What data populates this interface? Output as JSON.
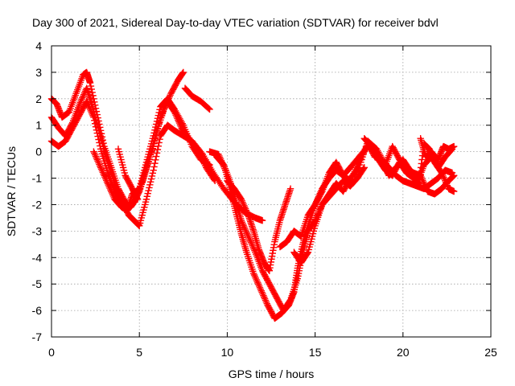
{
  "chart_data": {
    "type": "scatter",
    "title": "Day 300 of 2021, Sidereal Day-to-day VTEC variation (SDTVAR) for receiver bdvl",
    "xlabel": "GPS time / hours",
    "ylabel": "SDTVAR / TECUs",
    "xlim": [
      0,
      25
    ],
    "ylim": [
      -7,
      4
    ],
    "xticks": [
      "0",
      "5",
      "10",
      "15",
      "20",
      "25"
    ],
    "yticks": [
      "4",
      "3",
      "2",
      "1",
      "0",
      "-1",
      "-2",
      "-3",
      "-4",
      "-5",
      "-6",
      "-7"
    ],
    "grid": true,
    "marker": "+",
    "marker_color": "#ff0000",
    "series": [
      {
        "points": [
          [
            0.0,
            2.0
          ],
          [
            0.3,
            1.8
          ],
          [
            0.6,
            1.3
          ],
          [
            1.0,
            1.5
          ],
          [
            1.4,
            2.2
          ],
          [
            1.8,
            2.9
          ],
          [
            2.0,
            3.0
          ],
          [
            2.2,
            2.6
          ],
          [
            2.6,
            1.4
          ],
          [
            3.0,
            0.2
          ],
          [
            3.4,
            -0.6
          ],
          [
            3.8,
            -1.4
          ],
          [
            4.2,
            -1.9
          ],
          [
            4.5,
            -2.1
          ],
          [
            4.8,
            -1.8
          ],
          [
            5.2,
            -1.1
          ],
          [
            5.6,
            -0.2
          ],
          [
            6.0,
            0.8
          ],
          [
            6.4,
            1.6
          ],
          [
            6.8,
            2.2
          ],
          [
            7.2,
            2.7
          ],
          [
            7.5,
            3.0
          ]
        ]
      },
      {
        "points": [
          [
            0.0,
            1.3
          ],
          [
            0.4,
            0.9
          ],
          [
            0.8,
            0.6
          ],
          [
            1.2,
            1.1
          ],
          [
            1.6,
            1.8
          ],
          [
            2.0,
            2.4
          ],
          [
            2.3,
            1.8
          ],
          [
            2.7,
            0.8
          ],
          [
            3.1,
            -0.2
          ],
          [
            3.5,
            -1.0
          ],
          [
            3.9,
            -1.8
          ],
          [
            4.3,
            -2.2
          ],
          [
            4.6,
            -2.0
          ],
          [
            5.0,
            -1.5
          ],
          [
            5.4,
            -0.6
          ],
          [
            5.8,
            0.2
          ],
          [
            6.2,
            1.3
          ],
          [
            6.6,
            1.9
          ],
          [
            7.0,
            1.5
          ],
          [
            7.4,
            0.9
          ],
          [
            7.8,
            0.5
          ],
          [
            8.3,
            0.1
          ],
          [
            8.8,
            -0.6
          ],
          [
            9.3,
            -1.1
          ]
        ]
      },
      {
        "points": [
          [
            0.0,
            0.4
          ],
          [
            0.4,
            0.2
          ],
          [
            0.8,
            0.4
          ],
          [
            1.2,
            0.9
          ],
          [
            1.6,
            1.4
          ],
          [
            2.0,
            1.9
          ],
          [
            2.4,
            1.3
          ],
          [
            2.8,
            0.1
          ],
          [
            3.2,
            -0.8
          ],
          [
            3.6,
            -1.5
          ],
          [
            4.0,
            -1.9
          ],
          [
            4.4,
            -2.4
          ],
          [
            4.7,
            -2.6
          ],
          [
            5.0,
            -2.8
          ],
          [
            5.4,
            -1.8
          ],
          [
            5.8,
            -0.7
          ],
          [
            6.2,
            0.6
          ],
          [
            6.6,
            1.0
          ],
          [
            7.0,
            0.8
          ],
          [
            7.5,
            0.6
          ],
          [
            8.0,
            0.4
          ],
          [
            8.6,
            -0.1
          ],
          [
            9.2,
            -0.8
          ],
          [
            9.8,
            -1.4
          ],
          [
            10.4,
            -1.9
          ],
          [
            11.0,
            -2.3
          ],
          [
            11.6,
            -2.5
          ],
          [
            12.0,
            -2.6
          ]
        ]
      },
      {
        "points": [
          [
            2.4,
            0.0
          ],
          [
            2.8,
            -0.6
          ],
          [
            3.2,
            -1.2
          ],
          [
            3.6,
            -1.8
          ],
          [
            4.0,
            -2.1
          ],
          [
            4.3,
            -2.2
          ],
          [
            4.6,
            -1.6
          ],
          [
            5.0,
            -1.4
          ],
          [
            5.4,
            -0.4
          ],
          [
            5.8,
            0.6
          ],
          [
            6.2,
            1.7
          ],
          [
            6.6,
            2.0
          ],
          [
            7.0,
            1.6
          ],
          [
            7.5,
            1.0
          ],
          [
            8.0,
            0.2
          ],
          [
            8.5,
            -0.3
          ],
          [
            9.0,
            -0.5
          ]
        ]
      },
      {
        "points": [
          [
            3.8,
            0.1
          ],
          [
            4.2,
            -0.9
          ],
          [
            4.6,
            -1.4
          ],
          [
            4.9,
            -1.8
          ]
        ]
      },
      {
        "points": [
          [
            7.6,
            2.4
          ],
          [
            8.0,
            2.1
          ],
          [
            8.5,
            1.9
          ],
          [
            9.0,
            1.6
          ]
        ]
      },
      {
        "points": [
          [
            9.0,
            0.0
          ],
          [
            9.5,
            -0.1
          ],
          [
            9.9,
            -0.7
          ],
          [
            10.2,
            -1.5
          ],
          [
            10.5,
            -2.3
          ],
          [
            10.8,
            -3.1
          ],
          [
            11.1,
            -3.8
          ],
          [
            11.5,
            -4.6
          ],
          [
            11.9,
            -5.2
          ],
          [
            12.3,
            -5.8
          ],
          [
            12.7,
            -6.3
          ],
          [
            13.1,
            -6.1
          ],
          [
            13.5,
            -5.8
          ],
          [
            13.8,
            -5.3
          ],
          [
            14.0,
            -4.4
          ],
          [
            14.3,
            -3.5
          ],
          [
            14.6,
            -2.8
          ],
          [
            15.0,
            -2.0
          ],
          [
            15.4,
            -1.4
          ],
          [
            15.8,
            -1.0
          ],
          [
            16.2,
            -0.7
          ],
          [
            16.6,
            -0.9
          ],
          [
            17.0,
            -1.1
          ],
          [
            17.5,
            -0.4
          ],
          [
            18.0,
            0.3
          ],
          [
            18.4,
            -0.2
          ],
          [
            18.8,
            -0.3
          ],
          [
            19.2,
            -0.6
          ],
          [
            19.6,
            -0.9
          ],
          [
            20.0,
            -1.1
          ],
          [
            20.4,
            -1.2
          ],
          [
            20.8,
            -1.3
          ],
          [
            21.2,
            -1.4
          ],
          [
            21.6,
            -1.2
          ],
          [
            22.0,
            -1.0
          ],
          [
            22.4,
            -0.7
          ],
          [
            22.8,
            -0.8
          ]
        ]
      },
      {
        "points": [
          [
            9.4,
            -0.2
          ],
          [
            9.8,
            -0.5
          ],
          [
            10.2,
            -1.2
          ],
          [
            10.5,
            -1.9
          ],
          [
            10.8,
            -2.6
          ],
          [
            11.2,
            -3.2
          ],
          [
            11.6,
            -3.8
          ],
          [
            12.0,
            -4.5
          ],
          [
            12.4,
            -5.0
          ],
          [
            12.8,
            -5.5
          ],
          [
            13.2,
            -6.0
          ],
          [
            13.6,
            -5.6
          ],
          [
            14.0,
            -4.8
          ],
          [
            14.3,
            -3.8
          ],
          [
            14.6,
            -3.0
          ],
          [
            15.0,
            -2.6
          ],
          [
            15.4,
            -2.0
          ],
          [
            15.8,
            -1.6
          ],
          [
            16.2,
            -1.2
          ],
          [
            16.6,
            -1.5
          ],
          [
            17.0,
            -1.0
          ],
          [
            17.5,
            -0.6
          ],
          [
            18.0,
            0.4
          ],
          [
            18.5,
            0.1
          ],
          [
            19.0,
            -0.5
          ],
          [
            19.4,
            0.2
          ],
          [
            19.8,
            -0.3
          ],
          [
            20.2,
            -0.6
          ],
          [
            20.6,
            -0.8
          ],
          [
            21.0,
            -0.9
          ],
          [
            21.4,
            -1.5
          ],
          [
            21.8,
            -1.6
          ],
          [
            22.2,
            -1.4
          ],
          [
            22.6,
            -1.1
          ],
          [
            22.9,
            -0.9
          ]
        ]
      },
      {
        "points": [
          [
            10.0,
            -1.1
          ],
          [
            10.4,
            -1.4
          ],
          [
            10.8,
            -1.8
          ],
          [
            11.2,
            -2.4
          ],
          [
            11.5,
            -3.0
          ],
          [
            11.8,
            -3.7
          ],
          [
            12.1,
            -4.2
          ],
          [
            12.4,
            -4.5
          ],
          [
            12.7,
            -3.4
          ],
          [
            13.0,
            -2.6
          ],
          [
            13.3,
            -2.0
          ],
          [
            13.6,
            -1.4
          ]
        ]
      },
      {
        "points": [
          [
            13.0,
            -3.6
          ],
          [
            13.4,
            -3.4
          ],
          [
            13.8,
            -3.0
          ],
          [
            14.2,
            -3.2
          ],
          [
            14.6,
            -2.4
          ],
          [
            15.0,
            -2.0
          ],
          [
            15.4,
            -1.5
          ],
          [
            15.8,
            -0.8
          ],
          [
            16.2,
            -0.4
          ],
          [
            16.6,
            -0.9
          ],
          [
            17.0,
            -0.6
          ],
          [
            17.5,
            -0.2
          ],
          [
            18.0,
            0.2
          ],
          [
            18.4,
            0.0
          ],
          [
            18.8,
            -0.4
          ],
          [
            19.2,
            -0.9
          ],
          [
            19.6,
            -0.6
          ],
          [
            20.0,
            -0.3
          ],
          [
            20.4,
            -0.7
          ],
          [
            20.8,
            -1.2
          ],
          [
            21.2,
            -0.5
          ],
          [
            21.6,
            -0.2
          ],
          [
            22.0,
            -0.6
          ],
          [
            22.4,
            -0.2
          ],
          [
            22.8,
            0.1
          ]
        ]
      },
      {
        "points": [
          [
            13.8,
            -3.8
          ],
          [
            14.2,
            -4.2
          ],
          [
            14.6,
            -3.8
          ],
          [
            15.0,
            -2.8
          ],
          [
            15.4,
            -2.0
          ],
          [
            15.8,
            -1.7
          ],
          [
            16.2,
            -1.4
          ],
          [
            16.6,
            -1.1
          ],
          [
            17.0,
            -1.3
          ],
          [
            17.4,
            -1.0
          ],
          [
            17.8,
            -0.6
          ]
        ]
      },
      {
        "points": [
          [
            17.8,
            0.5
          ],
          [
            18.2,
            0.2
          ],
          [
            18.6,
            -0.3
          ],
          [
            19.0,
            -0.7
          ],
          [
            19.4,
            -0.9
          ],
          [
            19.8,
            -0.4
          ],
          [
            20.2,
            -0.8
          ],
          [
            20.6,
            -1.0
          ],
          [
            20.9,
            -1.2
          ],
          [
            21.2,
            0.3
          ],
          [
            21.5,
            0.1
          ],
          [
            21.8,
            -0.4
          ],
          [
            22.2,
            -0.8
          ],
          [
            22.6,
            -1.4
          ],
          [
            22.9,
            -1.5
          ]
        ]
      },
      {
        "points": [
          [
            21.0,
            0.5
          ],
          [
            21.3,
            -0.2
          ],
          [
            21.6,
            0.0
          ],
          [
            22.0,
            -0.3
          ],
          [
            22.3,
            0.2
          ],
          [
            22.6,
            0.1
          ],
          [
            22.9,
            0.2
          ]
        ]
      }
    ]
  }
}
